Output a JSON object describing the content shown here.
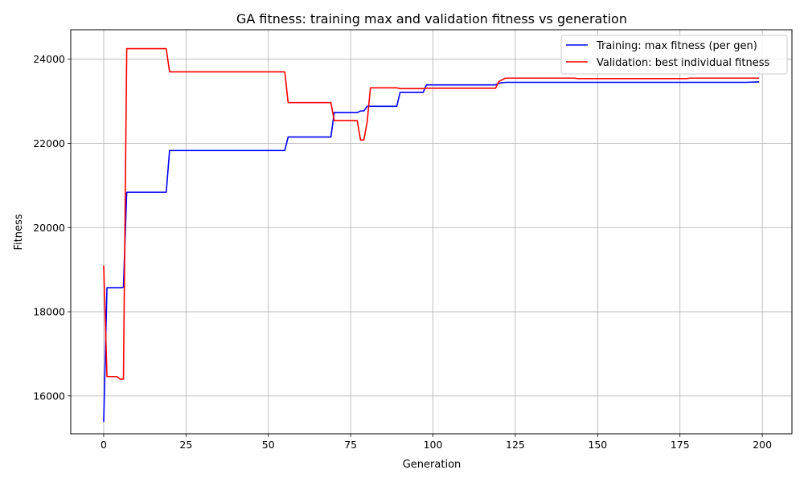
{
  "chart_data": {
    "type": "line",
    "title": "GA fitness: training max and validation fitness vs generation",
    "xlabel": "Generation",
    "ylabel": "Fitness",
    "xlim": [
      -10,
      209
    ],
    "ylim": [
      15100,
      24700
    ],
    "xticks": [
      0,
      25,
      50,
      75,
      100,
      125,
      150,
      175,
      200
    ],
    "yticks": [
      16000,
      18000,
      20000,
      22000,
      24000
    ],
    "grid": true,
    "legend_position": "upper right",
    "series": [
      {
        "name": "Training: max fitness (per gen)",
        "color": "#0000ff",
        "points": [
          [
            0,
            15380
          ],
          [
            1,
            18570
          ],
          [
            5,
            18570
          ],
          [
            6,
            18580
          ],
          [
            7,
            20840
          ],
          [
            19,
            20840
          ],
          [
            20,
            21830
          ],
          [
            55,
            21830
          ],
          [
            56,
            22150
          ],
          [
            69,
            22150
          ],
          [
            70,
            22730
          ],
          [
            77,
            22730
          ],
          [
            78,
            22770
          ],
          [
            79,
            22770
          ],
          [
            80,
            22880
          ],
          [
            89,
            22880
          ],
          [
            90,
            23210
          ],
          [
            97,
            23210
          ],
          [
            98,
            23390
          ],
          [
            119,
            23390
          ],
          [
            120,
            23430
          ],
          [
            122,
            23450
          ],
          [
            195,
            23450
          ],
          [
            199,
            23460
          ]
        ]
      },
      {
        "name": "Validation: best individual fitness",
        "color": "#ff0000",
        "points": [
          [
            0,
            19100
          ],
          [
            1,
            16460
          ],
          [
            4,
            16460
          ],
          [
            5,
            16400
          ],
          [
            6,
            16400
          ],
          [
            7,
            24250
          ],
          [
            19,
            24250
          ],
          [
            20,
            23700
          ],
          [
            55,
            23700
          ],
          [
            56,
            22970
          ],
          [
            69,
            22970
          ],
          [
            70,
            22540
          ],
          [
            77,
            22540
          ],
          [
            78,
            22080
          ],
          [
            79,
            22080
          ],
          [
            80,
            22500
          ],
          [
            81,
            23320
          ],
          [
            89,
            23320
          ],
          [
            90,
            23300
          ],
          [
            97,
            23300
          ],
          [
            98,
            23310
          ],
          [
            119,
            23310
          ],
          [
            120,
            23470
          ],
          [
            122,
            23550
          ],
          [
            143,
            23550
          ],
          [
            144,
            23540
          ],
          [
            177,
            23540
          ],
          [
            178,
            23550
          ],
          [
            199,
            23550
          ]
        ]
      }
    ]
  }
}
